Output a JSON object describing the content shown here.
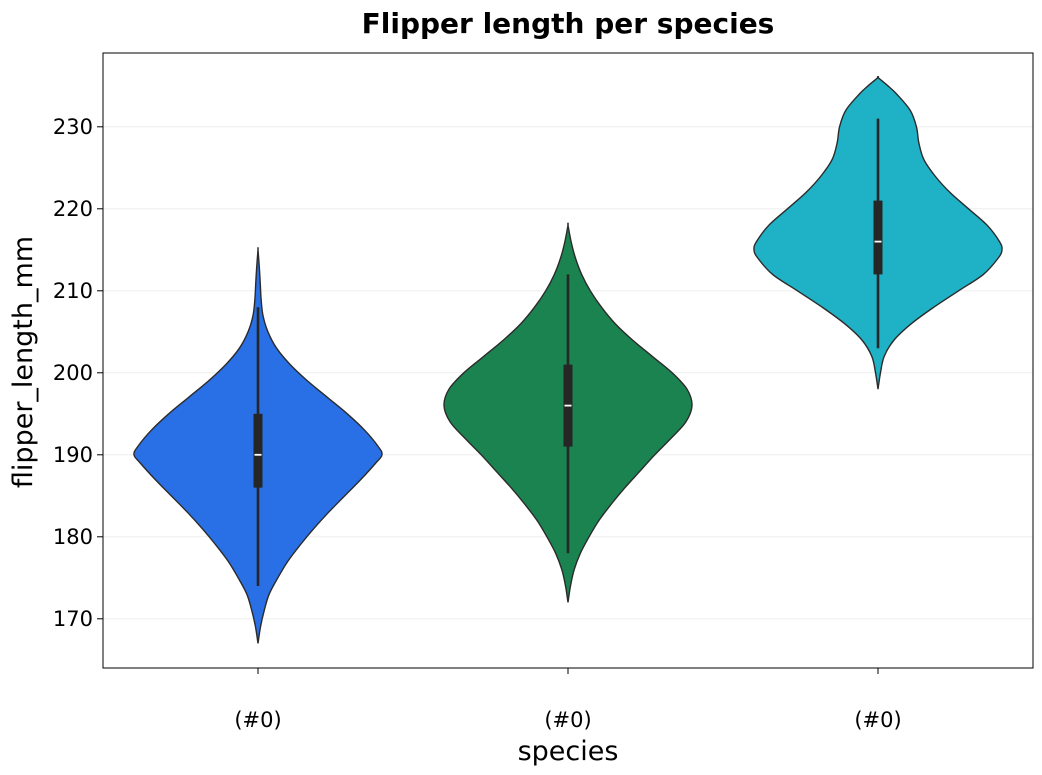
{
  "chart_data": {
    "type": "violin",
    "title": "Flipper length per species",
    "xlabel": "species",
    "ylabel": "flipper_length_mm",
    "categories": [
      "(#0)",
      "(#0)",
      "(#0)"
    ],
    "ylim": [
      164,
      239
    ],
    "yticks": [
      170,
      180,
      190,
      200,
      210,
      220,
      230
    ],
    "grid": "horizontal",
    "violins": [
      {
        "color": "#2970E6",
        "min": 172,
        "q1": 186,
        "median": 190,
        "q3": 195,
        "max": 210,
        "whisker_low": 174,
        "whisker_high": 208,
        "range": [
          167,
          215
        ],
        "density": [
          [
            167,
            0.0
          ],
          [
            169,
            0.02
          ],
          [
            171,
            0.05
          ],
          [
            173,
            0.09
          ],
          [
            175,
            0.16
          ],
          [
            177,
            0.24
          ],
          [
            179,
            0.34
          ],
          [
            181,
            0.45
          ],
          [
            183,
            0.57
          ],
          [
            185,
            0.7
          ],
          [
            187,
            0.83
          ],
          [
            189,
            0.95
          ],
          [
            190,
            1.0
          ],
          [
            191,
            0.97
          ],
          [
            193,
            0.86
          ],
          [
            195,
            0.72
          ],
          [
            197,
            0.56
          ],
          [
            199,
            0.4
          ],
          [
            201,
            0.26
          ],
          [
            203,
            0.15
          ],
          [
            205,
            0.08
          ],
          [
            207,
            0.04
          ],
          [
            209,
            0.025
          ],
          [
            211,
            0.018
          ],
          [
            213,
            0.01
          ],
          [
            215,
            0.0
          ]
        ]
      },
      {
        "color": "#1B834F",
        "min": 178,
        "q1": 191,
        "median": 196,
        "q3": 201,
        "max": 212,
        "whisker_low": 178,
        "whisker_high": 212,
        "range": [
          172,
          218
        ],
        "density": [
          [
            172,
            0.0
          ],
          [
            174,
            0.02
          ],
          [
            176,
            0.05
          ],
          [
            178,
            0.1
          ],
          [
            180,
            0.17
          ],
          [
            182,
            0.25
          ],
          [
            184,
            0.35
          ],
          [
            186,
            0.46
          ],
          [
            188,
            0.58
          ],
          [
            190,
            0.7
          ],
          [
            192,
            0.83
          ],
          [
            194,
            0.95
          ],
          [
            196,
            1.0
          ],
          [
            198,
            0.96
          ],
          [
            200,
            0.84
          ],
          [
            202,
            0.68
          ],
          [
            204,
            0.52
          ],
          [
            206,
            0.38
          ],
          [
            208,
            0.27
          ],
          [
            210,
            0.18
          ],
          [
            212,
            0.11
          ],
          [
            214,
            0.06
          ],
          [
            216,
            0.025
          ],
          [
            218,
            0.0
          ]
        ]
      },
      {
        "color": "#1FB1C6",
        "min": 203,
        "q1": 212,
        "median": 216,
        "q3": 221,
        "max": 231,
        "whisker_low": 203,
        "whisker_high": 231,
        "range": [
          198,
          236
        ],
        "density": [
          [
            198,
            0.0
          ],
          [
            200,
            0.02
          ],
          [
            202,
            0.05
          ],
          [
            204,
            0.13
          ],
          [
            206,
            0.27
          ],
          [
            208,
            0.45
          ],
          [
            210,
            0.65
          ],
          [
            212,
            0.85
          ],
          [
            214,
            0.97
          ],
          [
            215,
            1.0
          ],
          [
            216,
            0.98
          ],
          [
            218,
            0.88
          ],
          [
            220,
            0.73
          ],
          [
            222,
            0.58
          ],
          [
            224,
            0.46
          ],
          [
            226,
            0.37
          ],
          [
            228,
            0.33
          ],
          [
            230,
            0.31
          ],
          [
            232,
            0.26
          ],
          [
            234,
            0.15
          ],
          [
            235,
            0.08
          ],
          [
            236,
            0.0
          ]
        ]
      }
    ]
  }
}
